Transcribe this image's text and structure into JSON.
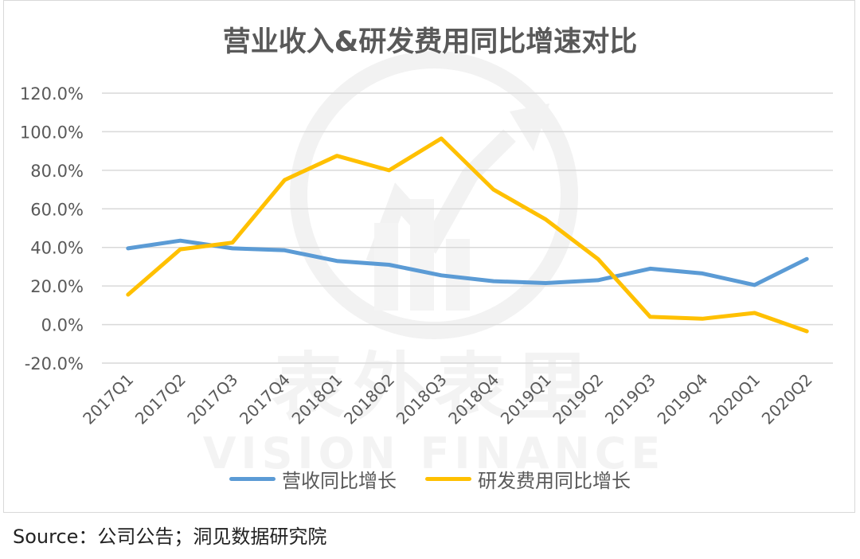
{
  "title": "营业收入&研发费用同比增速对比",
  "source": "Source：公司公告；洞见数据研究院",
  "watermark": {
    "cn": "表外表里",
    "en": "VISION FINANCE"
  },
  "colors": {
    "revenue": "#5b9bd5",
    "rd": "#ffc000",
    "grid": "#d9d9d9",
    "text": "#595959"
  },
  "chart_data": {
    "type": "line",
    "title": "营业收入&研发费用同比增速对比",
    "categories": [
      "2017Q1",
      "2017Q2",
      "2017Q3",
      "2017Q4",
      "2018Q1",
      "2018Q2",
      "2018Q3",
      "2018Q4",
      "2019Q1",
      "2019Q2",
      "2019Q3",
      "2019Q4",
      "2020Q1",
      "2020Q2"
    ],
    "series": [
      {
        "name": "营收同比增长",
        "color": "#5b9bd5",
        "values": [
          39.5,
          43.5,
          39.5,
          38.5,
          33,
          31,
          25.5,
          22.5,
          21.5,
          23,
          29,
          26.5,
          20.5,
          34
        ]
      },
      {
        "name": "研发费用同比增长",
        "color": "#ffc000",
        "values": [
          15.5,
          39,
          42.5,
          75,
          87.5,
          80,
          96.5,
          70,
          54.5,
          34,
          4,
          3,
          6,
          -3.5
        ]
      }
    ],
    "ylim": [
      -20,
      120
    ],
    "yticks": [
      "-20.0%",
      "0.0%",
      "20.0%",
      "40.0%",
      "60.0%",
      "80.0%",
      "100.0%",
      "120.0%"
    ],
    "grid": true,
    "legend": "bottom"
  }
}
